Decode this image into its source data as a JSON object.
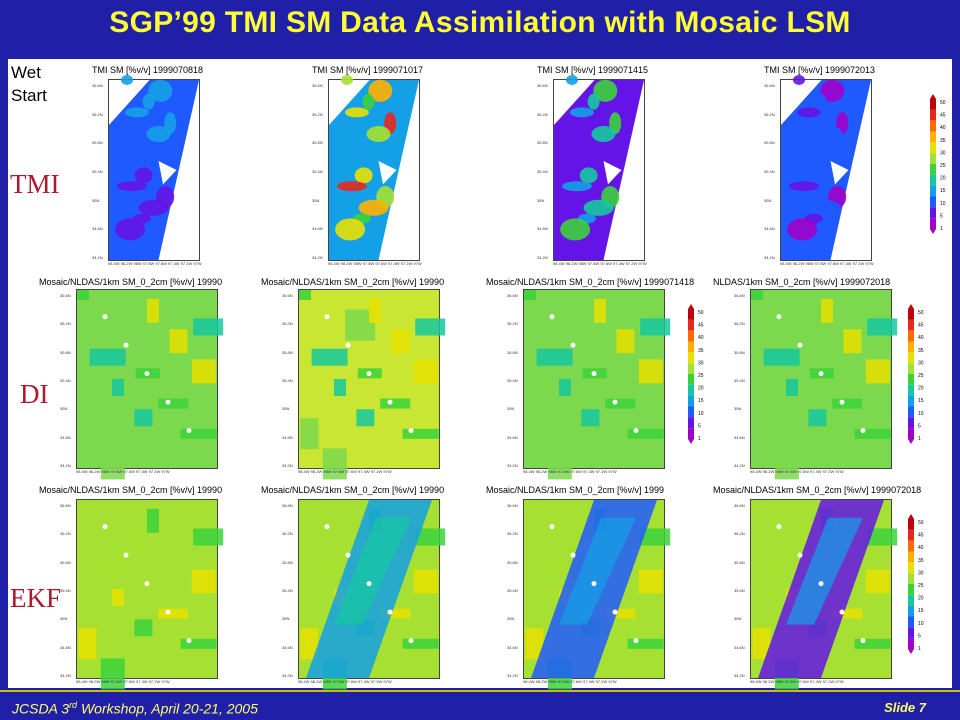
{
  "title": "SGP’99 TMI SM Data Assimilation with Mosaic LSM",
  "start_label_1": "Wet",
  "start_label_2": "Start",
  "rows": [
    {
      "label": "TMI",
      "maps": [
        {
          "title": "TMI  SM  [%v/v]  1999070818"
        },
        {
          "title": "TMI  SM  [%v/v]  1999071017"
        },
        {
          "title": "TMI  SM  [%v/v]  1999071415"
        },
        {
          "title": "TMI  SM  [%v/v]  1999072013"
        }
      ]
    },
    {
      "label": "DI",
      "maps": [
        {
          "title": "Mosaic/NLDAS/1km  SM_0_2cm  [%v/v]  19990"
        },
        {
          "title": "Mosaic/NLDAS/1km  SM_0_2cm  [%v/v]  19990"
        },
        {
          "title": "Mosaic/NLDAS/1km  SM_0_2cm  [%v/v]  1999071418"
        },
        {
          "title": "NLDAS/1km  SM_0_2cm  [%v/v]  1999072018"
        }
      ]
    },
    {
      "label": "EKF",
      "maps": [
        {
          "title": "Mosaic/NLDAS/1km  SM_0_2cm  [%v/v]  19990"
        },
        {
          "title": "Mosaic/NLDAS/1km  SM_0_2cm  [%v/v]  19990"
        },
        {
          "title": "Mosaic/NLDAS/1km  SM_0_2cm  [%v/v]  1999"
        },
        {
          "title": "Mosaic/NLDAS/1km  SM_0_2cm  [%v/v]  1999072018"
        }
      ]
    }
  ],
  "colorbar_ticks": [
    "50",
    "45",
    "40",
    "35",
    "30",
    "25",
    "20",
    "15",
    "10",
    "5",
    "1"
  ],
  "colorbar_colors": [
    "#c0000a",
    "#e8281e",
    "#ff6a00",
    "#ffb000",
    "#e8e000",
    "#a6e032",
    "#3cd23c",
    "#16c8a0",
    "#14a0e6",
    "#1e5aff",
    "#6414e6",
    "#a000c8"
  ],
  "y_ticks": [
    "36.6N",
    "36.2N",
    "35.8N",
    "35.4N",
    "35N",
    "34.6N",
    "34.2N"
  ],
  "x_ticks": "98.4W 98.2W  98W  97.8W 97.6W 97.4W 97.2W  97W",
  "footer": {
    "left": "JCSDA 3",
    "left_sup": "rd",
    "left_rest": " Workshop, April 20-21, 2005",
    "right": "Slide 7"
  }
}
